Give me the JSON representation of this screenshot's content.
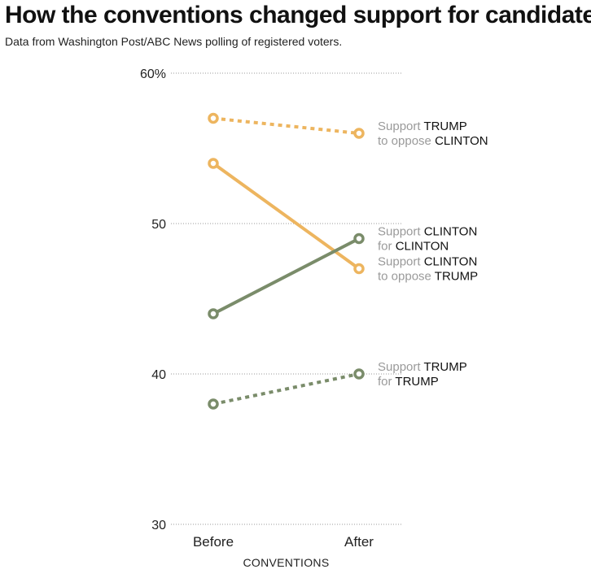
{
  "title": "How the conventions changed support for candidates",
  "subtitle": "Data from Washington Post/ABC News polling of registered voters.",
  "colors": {
    "trump": "#edb55f",
    "clinton": "#7a8c6a",
    "grid": "#9a9a9a",
    "soft_text": "#9a9a9a",
    "strong_text": "#111111"
  },
  "chart_data": {
    "type": "line",
    "categories": [
      "Before",
      "After"
    ],
    "xlabel": "CONVENTIONS",
    "ylabel": "",
    "ylim": [
      30,
      60
    ],
    "yticks": [
      30,
      40,
      50,
      60
    ],
    "ytick_labels": [
      "30",
      "40",
      "50",
      "60%"
    ],
    "grid": true,
    "series": [
      {
        "key": "support-trump-oppose-clinton",
        "color_key": "trump",
        "style": "dotted",
        "values": [
          57,
          56
        ],
        "label_lines": [
          [
            {
              "text": "Support ",
              "strong": false
            },
            {
              "text": "TRUMP",
              "strong": true
            }
          ],
          [
            {
              "text": "to oppose ",
              "strong": false
            },
            {
              "text": "CLINTON",
              "strong": true
            }
          ]
        ]
      },
      {
        "key": "support-clinton-oppose-trump",
        "color_key": "trump",
        "style": "solid",
        "values": [
          54,
          47
        ],
        "label_lines": [
          [
            {
              "text": "Support ",
              "strong": false
            },
            {
              "text": "CLINTON",
              "strong": true
            }
          ],
          [
            {
              "text": "to oppose ",
              "strong": false
            },
            {
              "text": "TRUMP",
              "strong": true
            }
          ]
        ]
      },
      {
        "key": "support-clinton-for-clinton",
        "color_key": "clinton",
        "style": "solid",
        "values": [
          44,
          49
        ],
        "label_lines": [
          [
            {
              "text": "Support ",
              "strong": false
            },
            {
              "text": "CLINTON",
              "strong": true
            }
          ],
          [
            {
              "text": "for ",
              "strong": false
            },
            {
              "text": "CLINTON",
              "strong": true
            }
          ]
        ]
      },
      {
        "key": "support-trump-for-trump",
        "color_key": "clinton",
        "style": "dotted",
        "values": [
          38,
          40
        ],
        "label_lines": [
          [
            {
              "text": "Support ",
              "strong": false
            },
            {
              "text": "TRUMP",
              "strong": true
            }
          ],
          [
            {
              "text": "for ",
              "strong": false
            },
            {
              "text": "TRUMP",
              "strong": true
            }
          ]
        ]
      }
    ]
  }
}
